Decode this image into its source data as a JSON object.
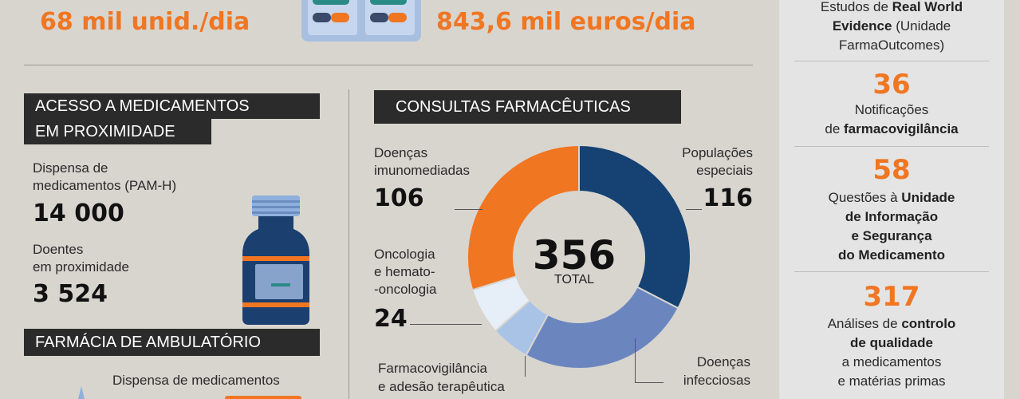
{
  "top": {
    "left_stat": "68 mil unid./dia",
    "right_stat": "843,6 mil euros/dia"
  },
  "proximity": {
    "title_line1": "ACESSO A MEDICAMENTOS",
    "title_line2": "EM PROXIMIDADE",
    "dispense_label_1": "Dispensa de",
    "dispense_label_2": "medicamentos (PAM-H)",
    "dispense_value": "14 000",
    "patients_label_1": "Doentes",
    "patients_label_2": "em proximidade",
    "patients_value": "3 524"
  },
  "ambulatory": {
    "title": "FARMÁCIA DE AMBULATÓRIO",
    "dispense_label": "Dispensa de medicamentos"
  },
  "consults": {
    "title": "CONSULTAS FARMACÊUTICAS",
    "total_value": "356",
    "total_label": "TOTAL",
    "immuno_1": "Doenças",
    "immuno_2": "imunomediadas",
    "immuno_value": "106",
    "special_1": "Populações",
    "special_2": "especiais",
    "special_value": "116",
    "onco_1": "Oncologia",
    "onco_2": "e hemato-",
    "onco_3": "-oncologia",
    "onco_value": "24",
    "infect_1": "Doenças",
    "infect_2": "infecciosas",
    "pharmaco_1": "Farmacovigilância",
    "pharmaco_2": "e adesão terapêutica"
  },
  "chart_data": {
    "type": "pie",
    "categories": [
      "Populações especiais",
      "Doenças infecciosas",
      "Farmacovigilância e adesão terapêutica",
      "Oncologia e hemato-oncologia",
      "Doenças imunomediadas"
    ],
    "values": [
      116,
      90,
      20,
      24,
      106
    ],
    "colors": [
      "#154273",
      "#6b86bf",
      "#a9c3e6",
      "#e6eef8",
      "#f07622"
    ]
  },
  "right_panel": {
    "rwe_1": "Estudos de ",
    "rwe_bold": "Real World",
    "rwe_bold2": "Evidence",
    "rwe_2": " (Unidade",
    "rwe_3": "FarmaOutcomes)",
    "notif_value": "36",
    "notif_1": "Notificações",
    "notif_2": "de ",
    "notif_bold": "farmacovigilância",
    "questions_value": "58",
    "questions_1": "Questões à ",
    "questions_bold1": "Unidade",
    "questions_bold2": "de Informação",
    "questions_bold3": "e Segurança",
    "questions_bold4": "do Medicamento",
    "analyses_value": "317",
    "analyses_1": "Análises de ",
    "analyses_bold1": "controlo",
    "analyses_bold2": "de qualidade",
    "analyses_2": "a medicamentos",
    "analyses_3": "e matérias primas"
  },
  "colors": {
    "accent": "#f07622",
    "navy": "#154273",
    "label_bg": "#2b2b2b",
    "background": "#d8d5cf"
  },
  "icons": [
    "pill-box-icon",
    "medicine-bottle-icon",
    "dropper-bottle-icon"
  ]
}
